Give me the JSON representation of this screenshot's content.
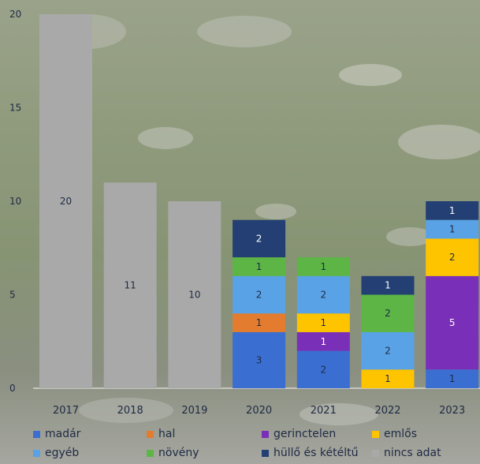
{
  "chart_data": {
    "type": "bar",
    "stacked": true,
    "categories": [
      "2017",
      "2018",
      "2019",
      "2020",
      "2021",
      "2022",
      "2023"
    ],
    "ylim": [
      0,
      20
    ],
    "yticks": [
      "0",
      "5",
      "10",
      "15",
      "20"
    ],
    "grid": false,
    "legend_position": "bottom",
    "series": [
      {
        "name": "madár",
        "color": "#3a6fd1",
        "values": [
          0,
          0,
          0,
          3,
          2,
          0,
          1
        ]
      },
      {
        "name": "hal",
        "color": "#e37c2e",
        "values": [
          0,
          0,
          0,
          1,
          0,
          0,
          0
        ]
      },
      {
        "name": "gerinctelen",
        "color": "#7a2fb8",
        "values": [
          0,
          0,
          0,
          0,
          1,
          0,
          5
        ]
      },
      {
        "name": "emlős",
        "color": "#ffc400",
        "values": [
          0,
          0,
          0,
          0,
          1,
          1,
          2
        ]
      },
      {
        "name": "egyéb",
        "color": "#5aa2e6",
        "values": [
          0,
          0,
          0,
          2,
          2,
          2,
          1
        ]
      },
      {
        "name": "növény",
        "color": "#5cb545",
        "values": [
          0,
          0,
          0,
          1,
          1,
          2,
          0
        ]
      },
      {
        "name": "hüllő és kétéltű",
        "color": "#233f73",
        "values": [
          0,
          0,
          0,
          2,
          0,
          1,
          1
        ]
      },
      {
        "name": "nincs adat",
        "color": "#a9a9a9",
        "values": [
          20,
          11,
          10,
          0,
          0,
          0,
          0
        ]
      }
    ]
  }
}
